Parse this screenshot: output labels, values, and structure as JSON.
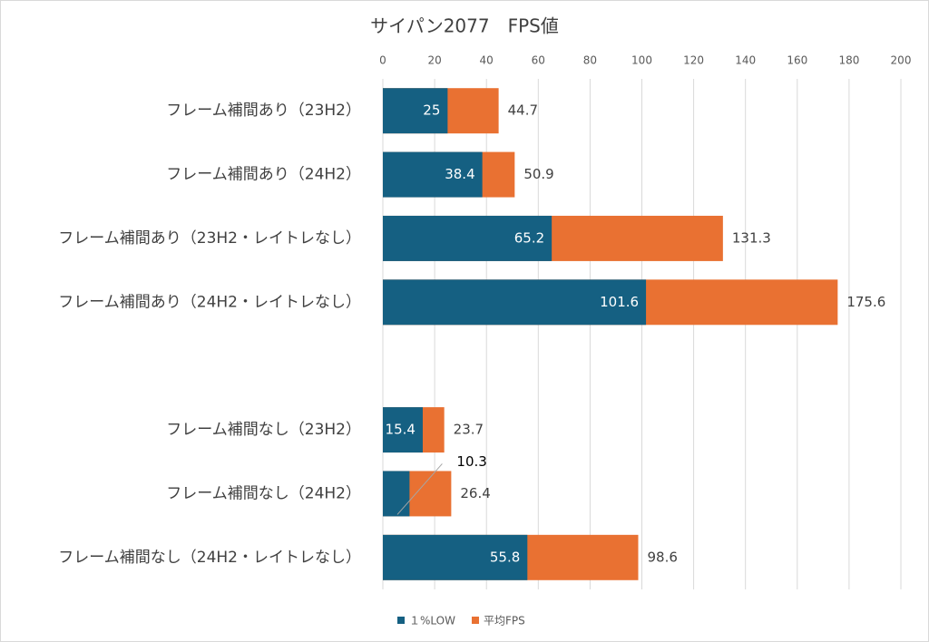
{
  "chart_data": {
    "type": "bar",
    "orientation": "horizontal",
    "overlap": true,
    "title": "サイパン2077　FPS値",
    "categories": [
      "フレーム補間あり（23H2）",
      "フレーム補間あり（24H2）",
      "フレーム補間あり（23H2・レイトレなし）",
      "フレーム補間あり（24H2・レイトレなし）",
      null,
      "フレーム補間なし（23H2）",
      "フレーム補間なし（24H2）",
      "フレーム補間なし（24H2・レイトレなし）"
    ],
    "series": [
      {
        "name": "平均FPS",
        "color": "#e97132",
        "values": [
          44.7,
          50.9,
          131.3,
          175.6,
          null,
          23.7,
          26.4,
          98.6
        ]
      },
      {
        "name": "１%LOW",
        "color": "#156082",
        "values": [
          25,
          38.4,
          65.2,
          101.6,
          null,
          15.4,
          10.3,
          55.8
        ]
      }
    ],
    "xlim": [
      0,
      200
    ],
    "xticks": [
      0,
      20,
      40,
      60,
      80,
      100,
      120,
      140,
      160,
      180,
      200
    ],
    "grid": true,
    "legend": "bottom"
  }
}
